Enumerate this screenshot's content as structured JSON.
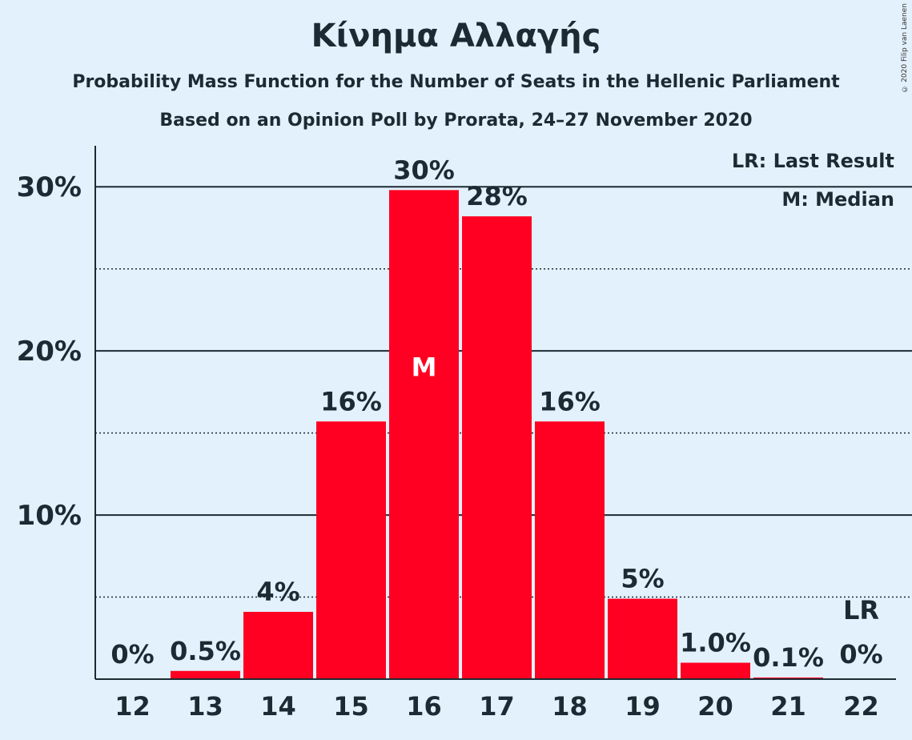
{
  "chart_data": {
    "type": "bar",
    "title": "Κίνημα Αλλαγής",
    "subtitle": "Probability Mass Function for the Number of Seats in the Hellenic Parliament",
    "subtitle2": "Based on an Opinion Poll by Prorata, 24–27 November 2020",
    "copyright": "© 2020 Filip van Laenen",
    "categories": [
      "12",
      "13",
      "14",
      "15",
      "16",
      "17",
      "18",
      "19",
      "20",
      "21",
      "22"
    ],
    "values": [
      0,
      0.5,
      4.1,
      15.7,
      29.8,
      28.2,
      15.7,
      4.9,
      1.0,
      0.1,
      0
    ],
    "labels": [
      "0%",
      "0.5%",
      "4%",
      "16%",
      "30%",
      "28%",
      "16%",
      "5%",
      "1.0%",
      "0.1%",
      "0%"
    ],
    "ylim": [
      0,
      32.5
    ],
    "yticks": [
      10,
      20,
      30
    ],
    "ytick_labels": [
      "10%",
      "20%",
      "30%"
    ],
    "minor_gridlines": [
      5,
      15,
      25
    ],
    "median_index": 4,
    "median_marker": "M",
    "last_result_index": 10,
    "last_result_marker": "LR",
    "legend": [
      "LR: Last Result",
      "M: Median"
    ],
    "legend_position": "top-right",
    "bar_color": "#ff0022"
  }
}
